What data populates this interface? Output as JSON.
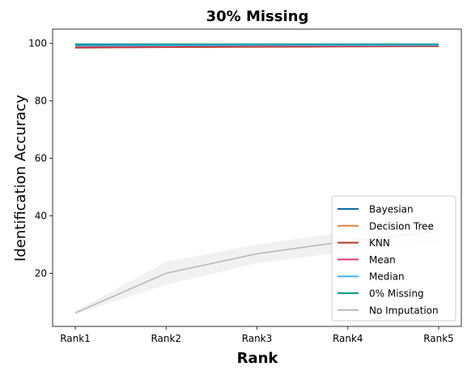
{
  "chart_data": {
    "type": "line",
    "title": "30% Missing",
    "xlabel": "Rank",
    "ylabel": "Identification Accuracy",
    "categories": [
      "Rank1",
      "Rank2",
      "Rank3",
      "Rank4",
      "Rank5"
    ],
    "ylim": [
      1.5,
      105
    ],
    "yticks": [
      20,
      40,
      60,
      80,
      100
    ],
    "grid": false,
    "legend_position": "bottom-right",
    "series": [
      {
        "name": "Bayesian",
        "color": "#0b6c9e",
        "values": [
          99.6,
          99.6,
          99.6,
          99.6,
          99.6
        ]
      },
      {
        "name": "Decision Tree",
        "color": "#ee7b3a",
        "values": [
          98.7,
          98.9,
          99.0,
          99.0,
          99.1
        ]
      },
      {
        "name": "KNN",
        "color": "#b53a1e",
        "values": [
          98.5,
          98.7,
          98.8,
          98.9,
          99.0
        ]
      },
      {
        "name": "Mean",
        "color": "#e0357a",
        "values": [
          98.9,
          99.1,
          99.2,
          99.2,
          99.3
        ]
      },
      {
        "name": "Median",
        "color": "#3cb4e6",
        "values": [
          99.2,
          99.3,
          99.4,
          99.4,
          99.4
        ]
      },
      {
        "name": "0% Missing",
        "color": "#109a8e",
        "values": [
          99.8,
          99.8,
          99.8,
          99.8,
          99.8
        ]
      },
      {
        "name": "No Imputation",
        "color": "#b8b8b8",
        "values": [
          6.2,
          20.0,
          26.8,
          31.2,
          34.5
        ],
        "band_low": [
          5.8,
          16.0,
          23.5,
          27.5,
          30.5
        ],
        "band_high": [
          6.8,
          24.0,
          30.0,
          34.5,
          38.0
        ]
      }
    ]
  }
}
